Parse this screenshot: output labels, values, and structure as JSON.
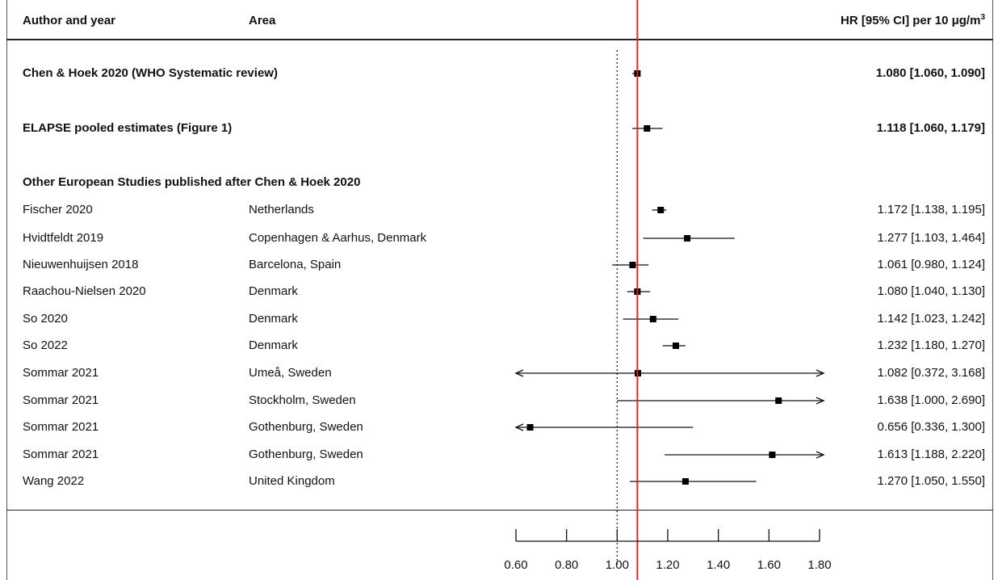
{
  "header": {
    "author_label": "Author and year",
    "area_label": "Area",
    "hr_label": "HR [95% CI] per 10 μg/m",
    "hr_label_sup": "3"
  },
  "section_label": "Other European Studies published after Chen & Hoek 2020",
  "chart_data": {
    "type": "forest",
    "reference_line": 1.0,
    "summary_line": 1.08,
    "xlim": [
      0.6,
      1.8
    ],
    "xticks": [
      0.6,
      0.8,
      1.0,
      1.2,
      1.4,
      1.6,
      1.8
    ],
    "xtick_labels": [
      "0.60",
      "0.80",
      "1.00",
      "1.20",
      "1.40",
      "1.60",
      "1.80"
    ],
    "rows": [
      {
        "author": "Chen & Hoek 2020 (WHO Systematic review)",
        "area": "",
        "hr": 1.08,
        "lo": 1.06,
        "hi": 1.09,
        "label": "1.080 [1.060, 1.090]",
        "bold": true
      },
      {
        "author": "ELAPSE pooled estimates (Figure 1)",
        "area": "",
        "hr": 1.118,
        "lo": 1.06,
        "hi": 1.179,
        "label": "1.118 [1.060, 1.179]",
        "bold": true
      },
      {
        "author": "Fischer 2020",
        "area": "Netherlands",
        "hr": 1.172,
        "lo": 1.138,
        "hi": 1.195,
        "label": "1.172 [1.138, 1.195]",
        "bold": false
      },
      {
        "author": "Hvidtfeldt 2019",
        "area": "Copenhagen & Aarhus, Denmark",
        "hr": 1.277,
        "lo": 1.103,
        "hi": 1.464,
        "label": "1.277 [1.103, 1.464]",
        "bold": false
      },
      {
        "author": "Nieuwenhuijsen 2018",
        "area": "Barcelona, Spain",
        "hr": 1.061,
        "lo": 0.98,
        "hi": 1.124,
        "label": "1.061 [0.980, 1.124]",
        "bold": false
      },
      {
        "author": "Raachou-Nielsen 2020",
        "area": "Denmark",
        "hr": 1.08,
        "lo": 1.04,
        "hi": 1.13,
        "label": "1.080 [1.040, 1.130]",
        "bold": false
      },
      {
        "author": "So 2020",
        "area": "Denmark",
        "hr": 1.142,
        "lo": 1.023,
        "hi": 1.242,
        "label": "1.142 [1.023, 1.242]",
        "bold": false
      },
      {
        "author": "So 2022",
        "area": "Denmark",
        "hr": 1.232,
        "lo": 1.18,
        "hi": 1.27,
        "label": "1.232 [1.180, 1.270]",
        "bold": false
      },
      {
        "author": "Sommar 2021",
        "area": "Umeå, Sweden",
        "hr": 1.082,
        "lo": 0.372,
        "hi": 3.168,
        "label": "1.082 [0.372, 3.168]",
        "bold": false
      },
      {
        "author": "Sommar 2021",
        "area": "Stockholm, Sweden",
        "hr": 1.638,
        "lo": 1.0,
        "hi": 2.69,
        "label": "1.638 [1.000, 2.690]",
        "bold": false
      },
      {
        "author": "Sommar 2021",
        "area": "Gothenburg, Sweden",
        "hr": 0.656,
        "lo": 0.336,
        "hi": 1.3,
        "label": "0.656 [0.336, 1.300]",
        "bold": false
      },
      {
        "author": "Sommar 2021",
        "area": "Gothenburg, Sweden",
        "hr": 1.613,
        "lo": 1.188,
        "hi": 2.22,
        "label": "1.613 [1.188, 2.220]",
        "bold": false
      },
      {
        "author": "Wang 2022",
        "area": "United Kingdom",
        "hr": 1.27,
        "lo": 1.05,
        "hi": 1.55,
        "label": "1.270 [1.050, 1.550]",
        "bold": false
      }
    ]
  }
}
